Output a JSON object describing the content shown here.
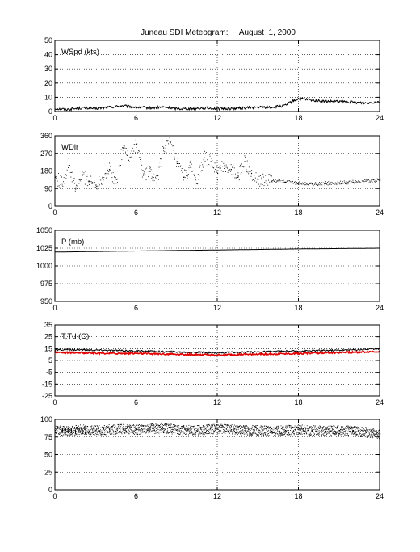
{
  "figure_title": "Juneau SDI Meteogram:     August  1, 2000",
  "chart_data": [
    {
      "type": "line",
      "label": "WSpd (kts)",
      "ylim": [
        0,
        50
      ],
      "yticks": [
        0,
        10,
        20,
        30,
        40,
        50
      ],
      "xlim": [
        0,
        24
      ],
      "xticks": [
        0,
        6,
        12,
        18,
        24
      ],
      "grid": true,
      "series": [
        {
          "color": "#000000",
          "style": "line",
          "x": [
            0,
            1,
            2,
            3,
            4,
            5,
            6,
            7,
            8,
            9,
            10,
            11,
            12,
            13,
            14,
            15,
            16,
            17,
            17.5,
            18,
            19,
            20,
            21,
            22,
            23,
            24
          ],
          "y": [
            2,
            1.5,
            2.5,
            2,
            3,
            4,
            3,
            2.5,
            3,
            2,
            2,
            2.5,
            2,
            2,
            2.5,
            3,
            3,
            4,
            7,
            9,
            8,
            7,
            7,
            6.5,
            6,
            7
          ]
        }
      ]
    },
    {
      "type": "scatter",
      "label": "WDir",
      "ylim": [
        0,
        360
      ],
      "yticks": [
        0,
        90,
        180,
        270,
        360
      ],
      "xlim": [
        0,
        24
      ],
      "xticks": [
        0,
        6,
        12,
        18,
        24
      ],
      "grid": true,
      "series": [
        {
          "color": "#000000",
          "style": "dots",
          "x": [
            0,
            0.5,
            1,
            1.5,
            2,
            2.5,
            3,
            3.5,
            4,
            4.5,
            5,
            5.5,
            6,
            6.5,
            7,
            7.5,
            8,
            8.5,
            9,
            9.5,
            10,
            10.5,
            11,
            11.5,
            12,
            12.5,
            13,
            13.5,
            14,
            14.5,
            15,
            16,
            17,
            18,
            19,
            20,
            21,
            22,
            23,
            24
          ],
          "y": [
            150,
            120,
            210,
            90,
            160,
            130,
            110,
            150,
            190,
            120,
            300,
            250,
            320,
            160,
            180,
            120,
            300,
            330,
            220,
            150,
            200,
            120,
            250,
            230,
            170,
            210,
            190,
            150,
            230,
            170,
            140,
            130,
            125,
            120,
            115,
            118,
            120,
            125,
            130,
            135
          ]
        }
      ]
    },
    {
      "type": "line",
      "label": "P (mb)",
      "ylim": [
        950,
        1050
      ],
      "yticks": [
        950,
        975,
        1000,
        1025,
        1050
      ],
      "xlim": [
        0,
        24
      ],
      "xticks": [
        0,
        6,
        12,
        18,
        24
      ],
      "grid": true,
      "series": [
        {
          "color": "#000000",
          "style": "line",
          "x": [
            0,
            6,
            12,
            18,
            24
          ],
          "y": [
            1019.5,
            1021,
            1022.5,
            1024,
            1025
          ]
        }
      ]
    },
    {
      "type": "line",
      "label": "T,Td (C)",
      "ylim": [
        -25,
        35
      ],
      "yticks": [
        -25,
        -15,
        -5,
        5,
        15,
        25,
        35
      ],
      "xlim": [
        0,
        24
      ],
      "xticks": [
        0,
        6,
        12,
        18,
        24
      ],
      "grid": true,
      "series": [
        {
          "color": "#000000",
          "style": "line",
          "x": [
            0,
            2,
            4,
            6,
            8,
            10,
            12,
            14,
            16,
            18,
            20,
            22,
            24
          ],
          "y": [
            14,
            14,
            13.5,
            13,
            12.5,
            12,
            11.5,
            12,
            12.5,
            13,
            13.5,
            14,
            15
          ]
        },
        {
          "color": "#e00000",
          "style": "line",
          "x": [
            0,
            2,
            4,
            6,
            8,
            10,
            12,
            14,
            16,
            18,
            20,
            22,
            24
          ],
          "y": [
            12,
            11.5,
            11,
            11,
            10.5,
            10,
            9.5,
            10,
            10.5,
            11,
            11.5,
            12,
            12.5
          ]
        }
      ]
    },
    {
      "type": "scatter",
      "label": "RH (%)",
      "ylim": [
        0,
        100
      ],
      "yticks": [
        0,
        25,
        50,
        75,
        100
      ],
      "xlim": [
        0,
        24
      ],
      "xticks": [
        0,
        6,
        12,
        18,
        24
      ],
      "grid": true,
      "series": [
        {
          "color": "#000000",
          "style": "dots",
          "x": [
            0,
            1,
            2,
            3,
            4,
            5,
            6,
            7,
            8,
            9,
            10,
            11,
            12,
            13,
            14,
            15,
            16,
            17,
            18,
            19,
            20,
            21,
            22,
            23,
            24
          ],
          "y": [
            85,
            84,
            86,
            85,
            86,
            87,
            86,
            87,
            88,
            86,
            85,
            86,
            87,
            86,
            85,
            85,
            84,
            85,
            86,
            85,
            84,
            85,
            84,
            82,
            80
          ]
        }
      ]
    }
  ]
}
